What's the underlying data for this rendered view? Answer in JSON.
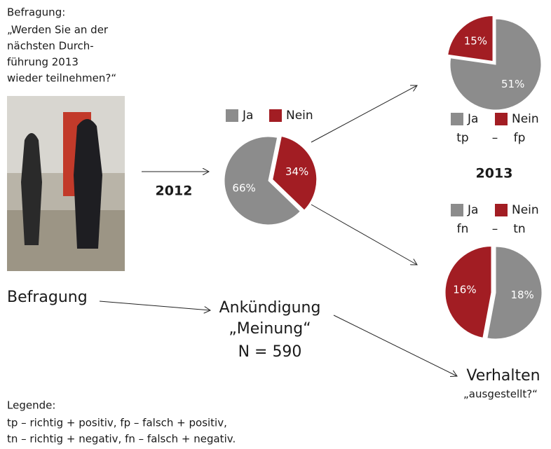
{
  "question": {
    "label": "Befragung:",
    "lines": [
      "„Werden Sie an der",
      "nächsten Durch-",
      "führung 2013",
      "wieder teilnehmen?“"
    ]
  },
  "year_2012": "2012",
  "year_2013": "2013",
  "main_pie": {
    "legend": [
      "Ja",
      "Nein"
    ],
    "values": [
      66,
      34
    ],
    "value_labels": [
      "66%",
      "34%"
    ],
    "colors": [
      "#8c8c8c",
      "#a21d23"
    ]
  },
  "top_pie": {
    "legend": [
      "Ja",
      "Nein"
    ],
    "codes": [
      "tp",
      "–",
      "fp"
    ],
    "values": [
      51,
      15
    ],
    "value_labels": [
      "51%",
      "15%"
    ],
    "colors": [
      "#8c8c8c",
      "#a21d23"
    ]
  },
  "bottom_pie": {
    "legend": [
      "Ja",
      "Nein"
    ],
    "codes": [
      "fn",
      "–",
      "tn"
    ],
    "values": [
      18,
      16
    ],
    "value_labels": [
      "18%",
      "16%"
    ],
    "colors": [
      "#8c8c8c",
      "#a21d23"
    ]
  },
  "flow": {
    "start": "Befragung",
    "middle": [
      "Ankündigung",
      "„Meinung“",
      "N = 590"
    ],
    "end": "Verhalten",
    "end_sub": "„ausgestellt?“"
  },
  "legend": {
    "title": "Legende:",
    "lines": [
      "tp – richtig + positiv, fp – falsch + positiv,",
      "tn – richtig + negativ, fn – falsch + negativ."
    ]
  }
}
